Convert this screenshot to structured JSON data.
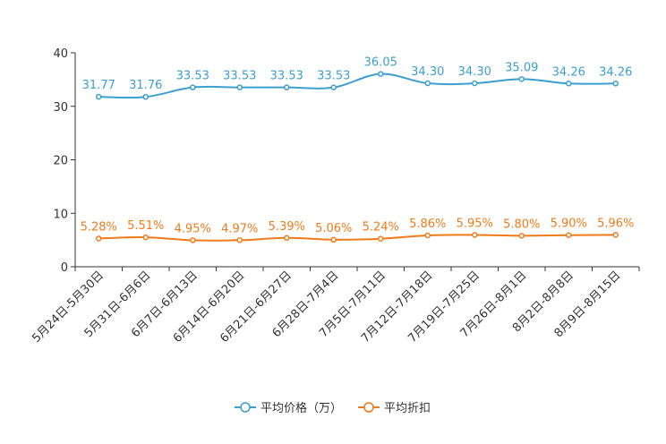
{
  "chart_data": {
    "type": "line",
    "title": "",
    "xlabel": "",
    "ylabel": "",
    "ylim": [
      0,
      40
    ],
    "yticks": [
      0,
      10,
      20,
      30,
      40
    ],
    "grid": false,
    "legend_position": "bottom-center",
    "categories": [
      "5月24日-5月30日",
      "5月31日-6月6日",
      "6月7日-6月13日",
      "6月14日-6月20日",
      "6月21日-6月27日",
      "6月28日-7月4日",
      "7月5日-7月11日",
      "7月12日-7月18日",
      "7月19日-7月25日",
      "7月26日-8月1日",
      "8月2日-8月8日",
      "8月9日-8月15日"
    ],
    "series": [
      {
        "name": "平均价格（万）",
        "color": "#3c9fcf",
        "values": [
          31.77,
          31.76,
          33.53,
          33.53,
          33.53,
          33.53,
          36.05,
          34.3,
          34.3,
          35.09,
          34.26,
          34.26
        ],
        "labels": [
          "31.77",
          "31.76",
          "33.53",
          "33.53",
          "33.53",
          "33.53",
          "36.05",
          "34.30",
          "34.30",
          "35.09",
          "34.26",
          "34.26"
        ]
      },
      {
        "name": "平均折扣",
        "color": "#f07b1c",
        "values": [
          5.28,
          5.51,
          4.95,
          4.97,
          5.39,
          5.06,
          5.24,
          5.86,
          5.95,
          5.8,
          5.9,
          5.96
        ],
        "labels": [
          "5.28%",
          "5.51%",
          "4.95%",
          "4.97%",
          "5.39%",
          "5.06%",
          "5.24%",
          "5.86%",
          "5.95%",
          "5.80%",
          "5.90%",
          "5.96%"
        ]
      }
    ]
  }
}
